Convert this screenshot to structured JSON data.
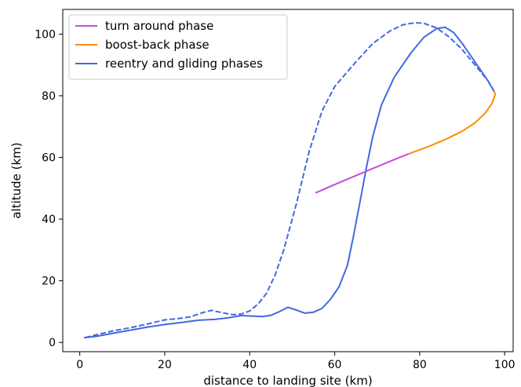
{
  "chart_data": {
    "type": "line",
    "title": "",
    "xlabel": "distance to landing site (km)",
    "ylabel": "altitude (km)",
    "xlim": [
      -4,
      102
    ],
    "ylim": [
      -3,
      108
    ],
    "xticks": [
      0,
      20,
      40,
      60,
      80,
      100
    ],
    "yticks": [
      0,
      20,
      40,
      60,
      80,
      100
    ],
    "grid": false,
    "legend_position": "top-left",
    "series": [
      {
        "name": "turn around phase",
        "color": "#c04fd8",
        "style": "solid",
        "points": [
          [
            55.5,
            48.5
          ],
          [
            60,
            51.2
          ],
          [
            65,
            54.1
          ],
          [
            70,
            57.0
          ],
          [
            74,
            59.3
          ],
          [
            77.5,
            61.2
          ]
        ]
      },
      {
        "name": "boost-back phase",
        "color": "#ff8c00",
        "style": "solid",
        "points": [
          [
            77.5,
            61.2
          ],
          [
            82,
            63.5
          ],
          [
            86,
            65.8
          ],
          [
            90,
            68.5
          ],
          [
            93,
            71.2
          ],
          [
            95.5,
            74.5
          ],
          [
            97,
            77.5
          ],
          [
            97.8,
            80.5
          ],
          [
            97.5,
            81.5
          ]
        ]
      },
      {
        "name": "reentry and gliding phases",
        "color": "#4169e1",
        "style": "solid",
        "points": [
          [
            97.5,
            81.5
          ],
          [
            96,
            85
          ],
          [
            93,
            91
          ],
          [
            90,
            97
          ],
          [
            88,
            100.5
          ],
          [
            86,
            102.2
          ],
          [
            84,
            101.8
          ],
          [
            81,
            99
          ],
          [
            78,
            94
          ],
          [
            74,
            86
          ],
          [
            71,
            77
          ],
          [
            69,
            67
          ],
          [
            67.5,
            57
          ],
          [
            66,
            46
          ],
          [
            64.5,
            35
          ],
          [
            63,
            25
          ],
          [
            61,
            18
          ],
          [
            59,
            14
          ],
          [
            57,
            11
          ],
          [
            55,
            9.8
          ],
          [
            53,
            9.5
          ],
          [
            51,
            10.5
          ],
          [
            49,
            11.4
          ],
          [
            47,
            10
          ],
          [
            45,
            8.8
          ],
          [
            43,
            8.4
          ],
          [
            41,
            8.5
          ],
          [
            38,
            8.7
          ],
          [
            35,
            8
          ],
          [
            32,
            7.5
          ],
          [
            28,
            7.2
          ],
          [
            24,
            6.5
          ],
          [
            20,
            5.8
          ],
          [
            16,
            5
          ],
          [
            12,
            4
          ],
          [
            8,
            3
          ],
          [
            4,
            2
          ],
          [
            1,
            1.5
          ]
        ]
      },
      {
        "name": "",
        "color": "#4169e1",
        "style": "dashed",
        "points": [
          [
            97.5,
            81.5
          ],
          [
            96,
            85
          ],
          [
            93,
            90
          ],
          [
            90,
            95
          ],
          [
            87,
            99
          ],
          [
            84,
            102
          ],
          [
            81,
            103.5
          ],
          [
            79,
            103.7
          ],
          [
            76,
            103
          ],
          [
            73,
            101
          ],
          [
            69,
            97
          ],
          [
            65,
            91
          ],
          [
            60,
            83
          ],
          [
            57,
            75
          ],
          [
            54,
            62
          ],
          [
            51,
            45
          ],
          [
            48,
            30
          ],
          [
            46,
            22
          ],
          [
            44,
            16
          ],
          [
            42,
            12.5
          ],
          [
            40,
            10.2
          ],
          [
            38,
            9.2
          ],
          [
            36,
            9
          ],
          [
            34,
            9.5
          ],
          [
            31,
            10.4
          ],
          [
            29,
            9.7
          ],
          [
            26,
            8.3
          ],
          [
            23,
            7.7
          ],
          [
            20,
            7.3
          ],
          [
            16,
            6
          ],
          [
            12,
            4.8
          ],
          [
            8,
            3.8
          ],
          [
            4,
            2.5
          ],
          [
            1,
            1.5
          ]
        ]
      }
    ]
  }
}
